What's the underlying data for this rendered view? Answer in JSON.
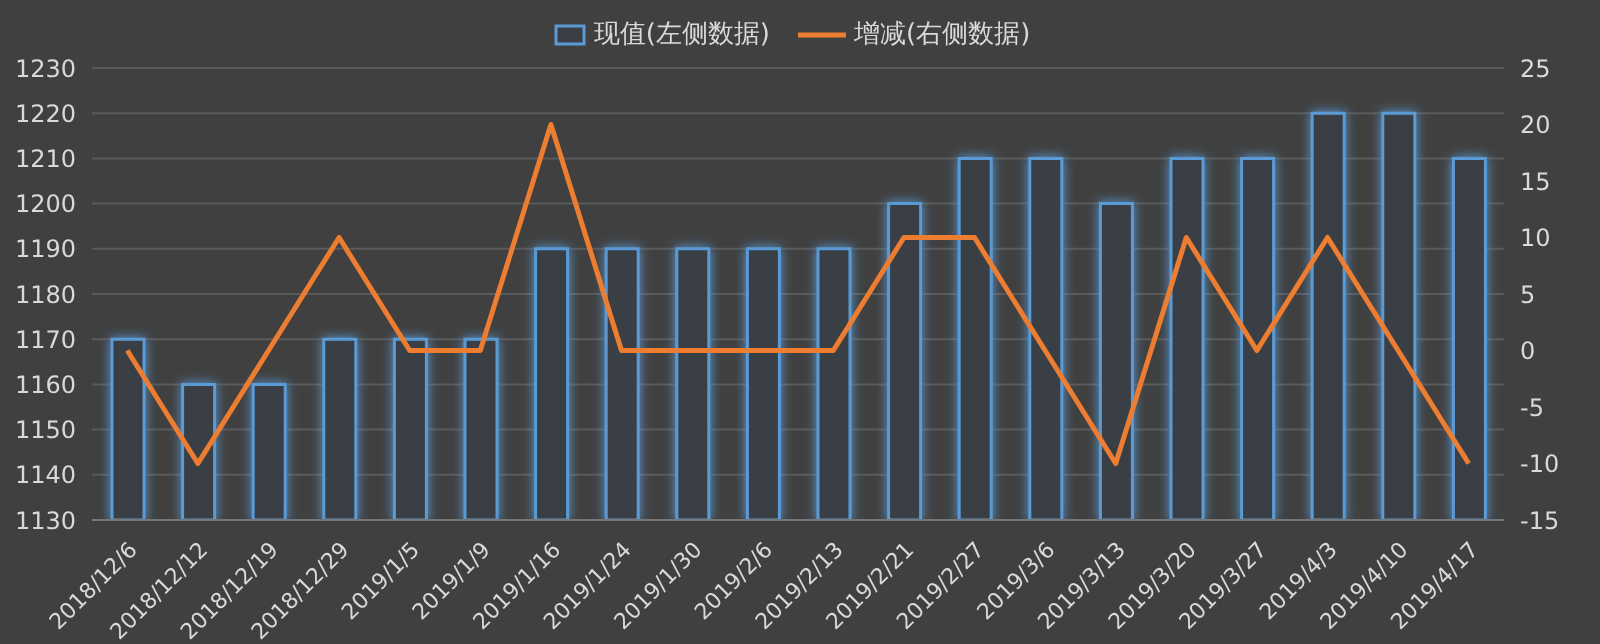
{
  "chart_data": {
    "type": "bar",
    "categories": [
      "2018/12/6",
      "2018/12/12",
      "2018/12/19",
      "2018/12/29",
      "2019/1/5",
      "2019/1/9",
      "2019/1/16",
      "2019/1/24",
      "2019/1/30",
      "2019/2/6",
      "2019/2/13",
      "2019/2/21",
      "2019/2/27",
      "2019/3/6",
      "2019/3/13",
      "2019/3/20",
      "2019/3/27",
      "2019/4/3",
      "2019/4/10",
      "2019/4/17"
    ],
    "series": [
      {
        "name": "现值(左侧数据)",
        "color": "#5b9bd5",
        "values": [
          1170,
          1160,
          1160,
          1170,
          1170,
          1170,
          1190,
          1190,
          1190,
          1190,
          1190,
          1200,
          1210,
          1210,
          1200,
          1210,
          1210,
          1220,
          1220,
          1210
        ]
      },
      {
        "name": "增减(右侧数据)",
        "type": "line",
        "axis": "y2",
        "color": "#ed7d31",
        "values": [
          0,
          -10,
          0,
          10,
          0,
          0,
          20,
          0,
          0,
          0,
          0,
          10,
          10,
          0,
          -10,
          10,
          0,
          10,
          0,
          -10
        ]
      }
    ],
    "ylim": [
      1130,
      1230
    ],
    "yticks": [
      1130,
      1140,
      1150,
      1160,
      1170,
      1180,
      1190,
      1200,
      1210,
      1220,
      1230
    ],
    "y2lim": [
      -15,
      25
    ],
    "y2ticks": [
      -15,
      -10,
      -5,
      0,
      5,
      10,
      15,
      20,
      25
    ],
    "grid": "y",
    "legend": "top",
    "marker": "none"
  }
}
